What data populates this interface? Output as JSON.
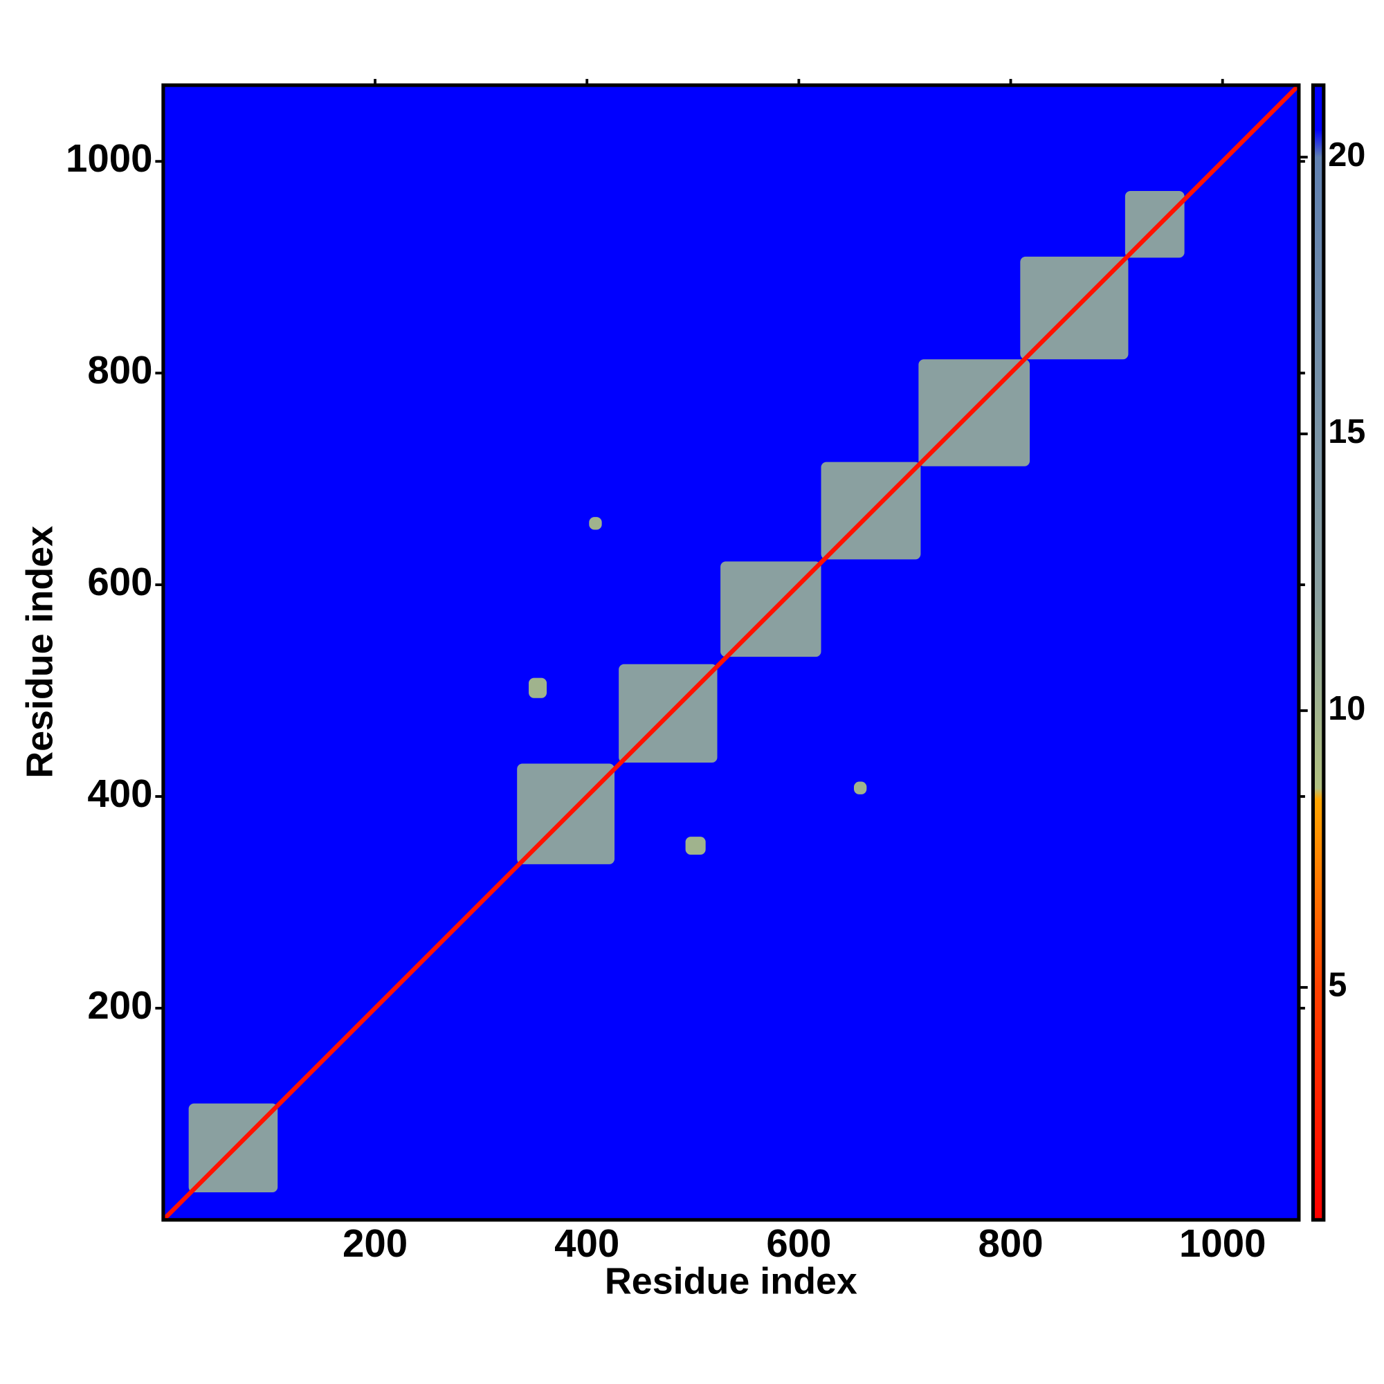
{
  "chart_data": {
    "type": "heatmap",
    "x_label": "Residue index",
    "y_label": "Residue index",
    "xlim": [
      0,
      1072
    ],
    "ylim": [
      0,
      1072
    ],
    "xticks": [
      200,
      400,
      600,
      800,
      1000
    ],
    "yticks": [
      200,
      400,
      600,
      800,
      1000
    ],
    "background_value": 21,
    "diagonal_value": 2,
    "regions": [
      {
        "x": [
          24,
          108
        ],
        "y": [
          26,
          110
        ],
        "value": 12
      },
      {
        "x": [
          334,
          426
        ],
        "y": [
          336,
          431
        ],
        "value": 12
      },
      {
        "x": [
          430,
          523
        ],
        "y": [
          432,
          525
        ],
        "value": 12
      },
      {
        "x": [
          526,
          621
        ],
        "y": [
          532,
          622
        ],
        "value": 12
      },
      {
        "x": [
          621,
          715
        ],
        "y": [
          624,
          716
        ],
        "value": 12
      },
      {
        "x": [
          713,
          818
        ],
        "y": [
          712,
          813
        ],
        "value": 12
      },
      {
        "x": [
          809,
          911
        ],
        "y": [
          813,
          910
        ],
        "value": 12
      },
      {
        "x": [
          908,
          964
        ],
        "y": [
          909,
          972
        ],
        "value": 12
      },
      {
        "x": [
          345,
          362
        ],
        "y": [
          493,
          512
        ],
        "value": 10
      },
      {
        "x": [
          493,
          512
        ],
        "y": [
          345,
          362
        ],
        "value": 10
      },
      {
        "x": [
          652,
          664
        ],
        "y": [
          402,
          414
        ],
        "value": 10
      },
      {
        "x": [
          402,
          414
        ],
        "y": [
          652,
          664
        ],
        "value": 10
      }
    ],
    "colorbar": {
      "lim": [
        0.8,
        21.3
      ],
      "ticks": [
        5,
        10,
        15,
        20
      ],
      "colorscale": [
        [
          0.8,
          "#ff0000"
        ],
        [
          5,
          "#ff4000"
        ],
        [
          8.4,
          "#ffa500"
        ],
        [
          8.6,
          "#b0c080"
        ],
        [
          12,
          "#8aa0a0"
        ],
        [
          20,
          "#6080b0"
        ],
        [
          20.5,
          "#0000ff"
        ],
        [
          21.3,
          "#0000ff"
        ]
      ]
    }
  }
}
